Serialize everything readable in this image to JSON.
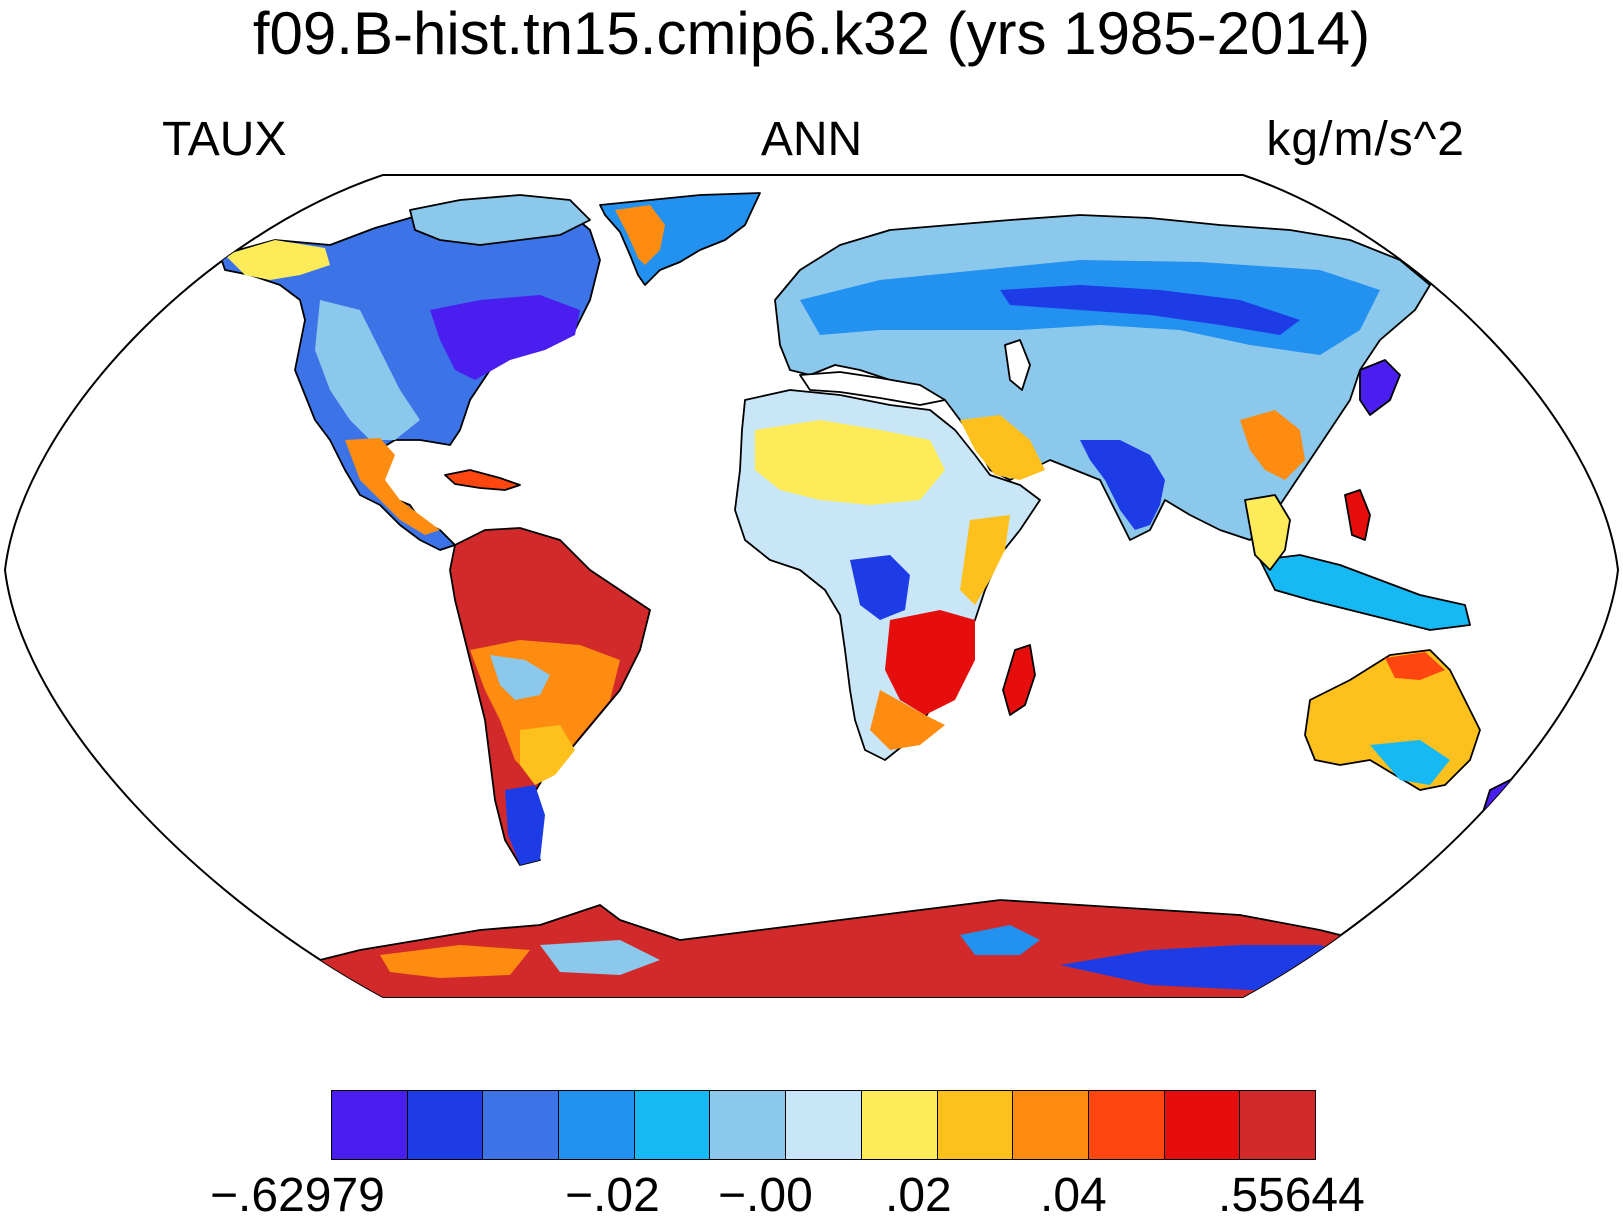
{
  "title": "f09.B-hist.tn15.cmip6.k32 (yrs 1985-2014)",
  "left_label": "TAUX",
  "center_label": "ANN",
  "right_label": "kg/m/s^2",
  "colorbar": {
    "colors": [
      "#4b1ef0",
      "#1e3ce6",
      "#3c73e6",
      "#2391f0",
      "#17b9f5",
      "#8cc8eb",
      "#c8e6f8",
      "#fdeb5a",
      "#fdc01c",
      "#fd8c10",
      "#fd4610",
      "#e60d0d",
      "#d22a2a"
    ],
    "labels": [
      "−.62979",
      "−.02",
      "−.00",
      ".02",
      ".04",
      ".55644"
    ]
  },
  "map": {
    "projection": "Robinson",
    "variable": "TAUX",
    "season": "ANN"
  }
}
